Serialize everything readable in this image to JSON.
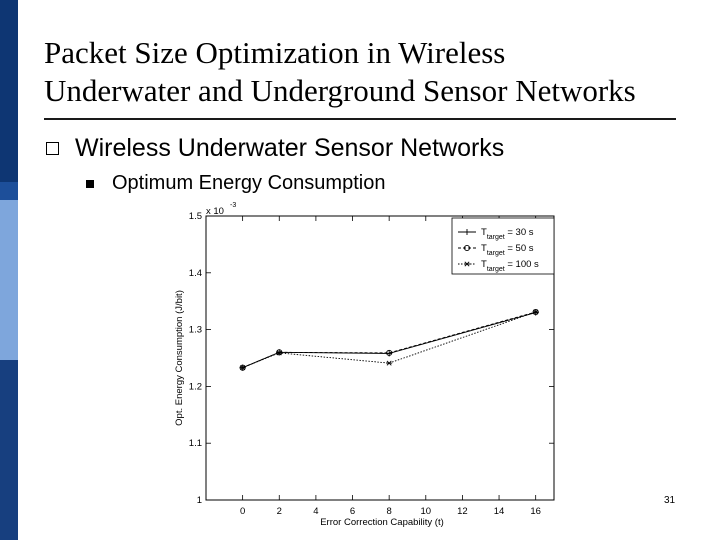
{
  "slide": {
    "title_line1": "Packet Size Optimization in Wireless",
    "title_line2": "Underwater and Underground Sensor Networks",
    "bullet1": "Wireless Underwater Sensor Networks",
    "bullet2": "Optimum Energy Consumption",
    "page_number": "31"
  },
  "colors": {
    "bar_top": "#0e3673",
    "bar_mid": "#1d4f9a",
    "bar_light": "#7ea6dc",
    "bar_bottom": "#173f7f"
  },
  "chart_data": {
    "type": "line",
    "title": "",
    "xlabel": "Error Correction Capability (t)",
    "ylabel": "Opt. Energy Consumption (J/bit)",
    "y_exponent_label": "x 10",
    "y_exponent_power": "-3",
    "xlim": [
      -2,
      17
    ],
    "ylim": [
      1.0,
      1.5
    ],
    "x_ticks": [
      0,
      2,
      4,
      6,
      8,
      10,
      12,
      14,
      16
    ],
    "y_ticks": [
      1,
      1.1,
      1.2,
      1.3,
      1.4,
      1.5
    ],
    "y_tick_labels": [
      "1",
      "1.1",
      "1.2",
      "1.3",
      "1.4",
      "1.5"
    ],
    "x": [
      0,
      2,
      8,
      16
    ],
    "series": [
      {
        "name": "T_target = 30 s",
        "legend_main": "T",
        "legend_sub": "target",
        "legend_tail": "= 30 s",
        "marker": "plus",
        "values": [
          1.233,
          1.26,
          1.258,
          1.33
        ]
      },
      {
        "name": "T_target = 50 s",
        "legend_main": "T",
        "legend_sub": "target",
        "legend_tail": "= 50 s",
        "marker": "circle",
        "values": [
          1.233,
          1.26,
          1.259,
          1.331
        ]
      },
      {
        "name": "T_target = 100 s",
        "legend_main": "T",
        "legend_sub": "target",
        "legend_tail": "= 100 s",
        "marker": "star",
        "values": [
          1.233,
          1.259,
          1.241,
          1.331
        ]
      }
    ],
    "legend_position": "top-right"
  }
}
